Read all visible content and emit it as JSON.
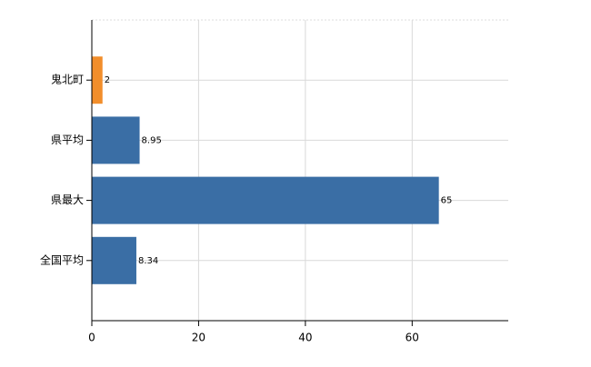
{
  "chart_data": {
    "type": "barh",
    "categories": [
      "鬼北町",
      "県平均",
      "県最大",
      "全国平均"
    ],
    "values": [
      2,
      8.95,
      65,
      8.34
    ],
    "colors": [
      "#f28e2b",
      "#3a6ea5",
      "#3a6ea5",
      "#3a6ea5"
    ],
    "xlim": [
      0,
      78
    ],
    "xticks": [
      0,
      20,
      40,
      60
    ],
    "grid": true
  }
}
